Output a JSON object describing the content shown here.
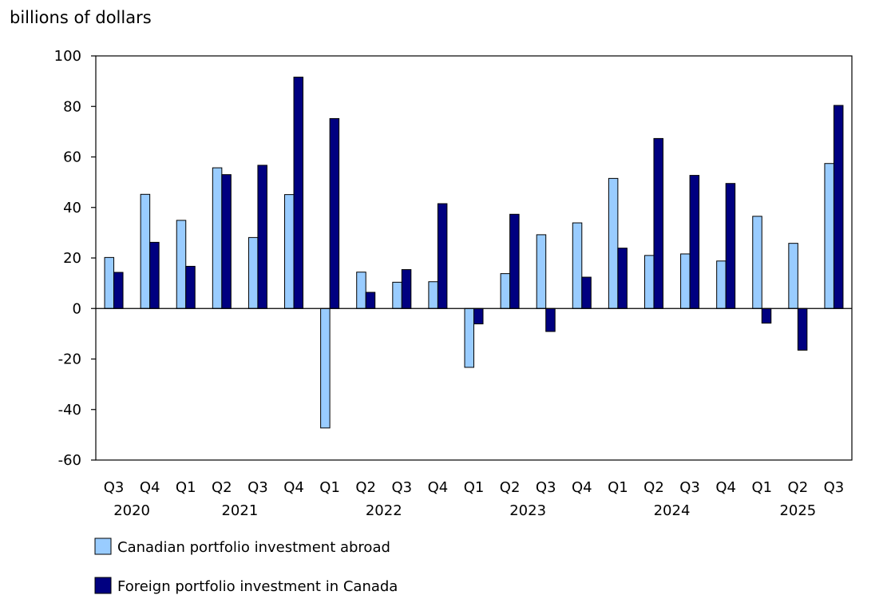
{
  "chart_data": {
    "type": "bar",
    "ylabel": "billions of dollars",
    "ylim": [
      -60,
      100
    ],
    "yticks": [
      100,
      80,
      60,
      40,
      20,
      0,
      -20,
      -40,
      -60
    ],
    "categories": [
      "Q3",
      "Q4",
      "Q1",
      "Q2",
      "Q3",
      "Q4",
      "Q1",
      "Q2",
      "Q3",
      "Q4",
      "Q1",
      "Q2",
      "Q3",
      "Q4",
      "Q1",
      "Q2",
      "Q3",
      "Q4",
      "Q1",
      "Q2",
      "Q3"
    ],
    "year_groups": [
      {
        "label": "2020",
        "start": 0,
        "end": 1
      },
      {
        "label": "2021",
        "start": 2,
        "end": 5
      },
      {
        "label": "2022",
        "start": 6,
        "end": 9
      },
      {
        "label": "2023",
        "start": 10,
        "end": 13
      },
      {
        "label": "2024",
        "start": 14,
        "end": 17
      },
      {
        "label": "2025",
        "start": 18,
        "end": 20
      }
    ],
    "series": [
      {
        "name": "Canadian portfolio investment abroad",
        "color": "#99ccff",
        "values": [
          20.2,
          45.2,
          34.9,
          55.7,
          28.1,
          45.1,
          -47.3,
          14.4,
          10.4,
          10.6,
          -23.3,
          13.8,
          29.2,
          33.9,
          51.5,
          21.0,
          21.6,
          18.8,
          36.5,
          25.8,
          57.4
        ]
      },
      {
        "name": "Foreign portfolio investment in Canada",
        "color": "#000080",
        "values": [
          14.3,
          26.2,
          16.7,
          53.0,
          56.7,
          91.6,
          75.2,
          6.4,
          15.4,
          41.5,
          -6.1,
          37.3,
          -9.1,
          12.4,
          23.9,
          67.3,
          52.7,
          49.5,
          -5.8,
          -16.5,
          80.4
        ]
      }
    ],
    "legend_position": "bottom-left",
    "grid": false
  }
}
